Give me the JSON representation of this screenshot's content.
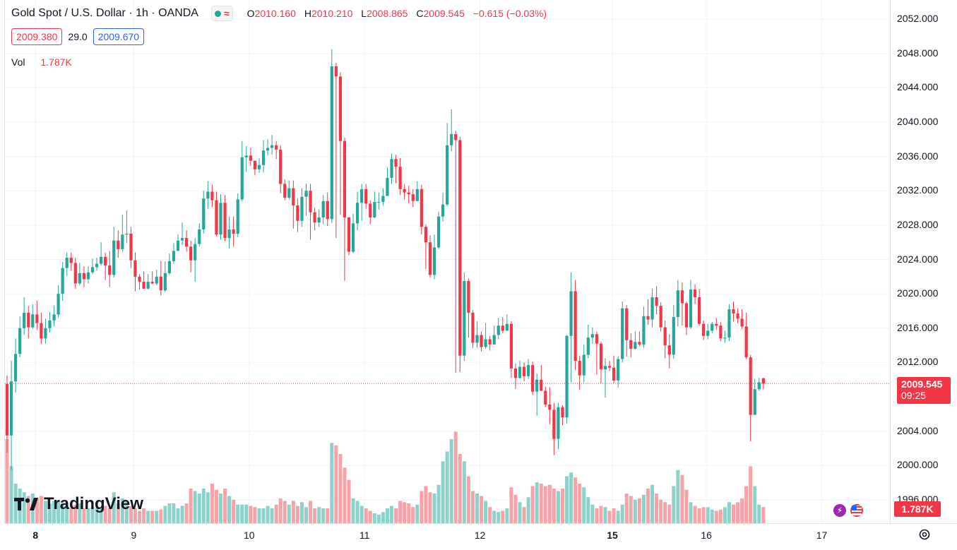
{
  "header": {
    "symbol_title": "Gold Spot / U.S. Dollar · 1h · OANDA",
    "ohlc": {
      "o_label": "O",
      "o_value": "2010.160",
      "h_label": "H",
      "h_value": "2010.210",
      "l_label": "L",
      "l_value": "2008.865",
      "c_label": "C",
      "c_value": "2009.545",
      "change": "−0.615 (−0.03%)"
    },
    "bid": "2009.380",
    "spread": "29.0",
    "ask": "2009.670",
    "vol_label": "Vol",
    "vol_value": "1.787K"
  },
  "price_scale": {
    "labels": [
      "2052.000",
      "2048.000",
      "2044.000",
      "2040.000",
      "2036.000",
      "2032.000",
      "2028.000",
      "2024.000",
      "2020.000",
      "2016.000",
      "2012.000",
      "2004.000",
      "2000.000",
      "1996.000"
    ],
    "last_price": "2009.545",
    "countdown": "09:25",
    "volume_tag": "1.787K"
  },
  "time_scale": {
    "labels": [
      {
        "text": "8",
        "bold": true
      },
      {
        "text": "9",
        "bold": false
      },
      {
        "text": "10",
        "bold": false
      },
      {
        "text": "11",
        "bold": false
      },
      {
        "text": "12",
        "bold": false
      },
      {
        "text": "15",
        "bold": true
      },
      {
        "text": "16",
        "bold": false
      },
      {
        "text": "17",
        "bold": false
      }
    ]
  },
  "branding": {
    "logo_text": "TradingView"
  },
  "colors": {
    "up": "#26a69a",
    "down": "#f23645",
    "vol_up": "#8ed1ca",
    "vol_down": "#f5a3a8",
    "grid": "#f0f3fa",
    "accent_blue": "#2962ff"
  },
  "icons": {
    "market_status": "green-dot-icon",
    "indicator": "wave-icon",
    "settings": "gear-icon",
    "event_1": "lightning-icon",
    "event_2": "us-flag-icon"
  },
  "chart_data": {
    "type": "candlestick",
    "timeframe": "1h",
    "ylim": [
      1995,
      2053
    ],
    "current_price": 2009.545,
    "day_ticks": [
      {
        "day": "8",
        "bar": 6
      },
      {
        "day": "9",
        "bar": 29
      },
      {
        "day": "10",
        "bar": 56
      },
      {
        "day": "11",
        "bar": 83
      },
      {
        "day": "12",
        "bar": 110
      },
      {
        "day": "15",
        "bar": 141
      },
      {
        "day": "16",
        "bar": 163
      },
      {
        "day": "17",
        "bar": 190
      }
    ],
    "candles": [
      [
        2009.5,
        2003.5,
        2010.5,
        2001.5,
        0.68
      ],
      [
        2003.5,
        2009.8,
        2012.2,
        1999.5,
        0.46
      ],
      [
        2009.8,
        2013,
        2014.8,
        2008.5,
        0.32
      ],
      [
        2013,
        2016,
        2017.4,
        2012.6,
        0.28
      ],
      [
        2016,
        2017.8,
        2019.6,
        2015.2,
        0.25
      ],
      [
        2017.8,
        2016.1,
        2018.6,
        2014.8,
        0.22
      ],
      [
        2016.1,
        2017.6,
        2018.8,
        2015.9,
        0.24
      ],
      [
        2017.6,
        2016.6,
        2019.2,
        2015.8,
        0.2
      ],
      [
        2016.6,
        2014.8,
        2017.8,
        2014.2,
        0.22
      ],
      [
        2014.8,
        2016,
        2017.1,
        2014.2,
        0.18
      ],
      [
        2016,
        2016.9,
        2017.9,
        2015.5,
        0.16
      ],
      [
        2016.9,
        2017.6,
        2018.6,
        2016.2,
        0.18
      ],
      [
        2017.6,
        2020,
        2021,
        2017.2,
        0.18
      ],
      [
        2020,
        2023,
        2023.7,
        2019.2,
        0.16
      ],
      [
        2023,
        2024.2,
        2024.8,
        2022.1,
        0.14
      ],
      [
        2024.2,
        2023.6,
        2024.8,
        2022.7,
        0.12
      ],
      [
        2023.6,
        2021.2,
        2024.2,
        2020.6,
        0.15
      ],
      [
        2021.2,
        2022.4,
        2023.6,
        2021,
        0.16
      ],
      [
        2022.4,
        2021.7,
        2023.2,
        2020.8,
        0.12
      ],
      [
        2021.7,
        2022.5,
        2023.2,
        2021.2,
        0.12
      ],
      [
        2022.5,
        2023.1,
        2024.1,
        2022.3,
        0.13
      ],
      [
        2023.1,
        2023.5,
        2024.2,
        2022.7,
        0.12
      ],
      [
        2023.5,
        2024.3,
        2026,
        2023.3,
        0.13
      ],
      [
        2024.3,
        2023.3,
        2024.8,
        2021.6,
        0.14
      ],
      [
        2023.3,
        2022.2,
        2025,
        2020.8,
        0.12
      ],
      [
        2022.2,
        2026.2,
        2027.8,
        2021.9,
        0.25
      ],
      [
        2026.2,
        2025.2,
        2027.4,
        2024.2,
        0.16
      ],
      [
        2025.2,
        2026.9,
        2029.2,
        2024.9,
        0.2
      ],
      [
        2026.9,
        2027,
        2029.7,
        2025.9,
        0.18
      ],
      [
        2027,
        2023.9,
        2027.8,
        2023,
        0.14
      ],
      [
        2023.9,
        2022,
        2024.8,
        2020.3,
        0.12
      ],
      [
        2022,
        2021.4,
        2022.3,
        2020.5,
        0.1
      ],
      [
        2021.4,
        2020.6,
        2022.6,
        2020.6,
        0.12
      ],
      [
        2020.6,
        2021.4,
        2022.3,
        2020.5,
        0.1
      ],
      [
        2021.4,
        2021.2,
        2022.6,
        2021.1,
        0.1
      ],
      [
        2021.2,
        2022,
        2022.8,
        2021,
        0.1
      ],
      [
        2022,
        2020.4,
        2023.8,
        2019.8,
        0.11
      ],
      [
        2020.4,
        2022.4,
        2023.8,
        2020.2,
        0.14
      ],
      [
        2022.4,
        2023.8,
        2024.7,
        2022.2,
        0.16
      ],
      [
        2023.8,
        2025,
        2025.9,
        2023.5,
        0.16
      ],
      [
        2025,
        2026.2,
        2026.9,
        2025.2,
        0.12
      ],
      [
        2026.2,
        2026.5,
        2028.3,
        2025.7,
        0.14
      ],
      [
        2026.5,
        2025.5,
        2027.4,
        2024.9,
        0.16
      ],
      [
        2025.5,
        2023.9,
        2026.2,
        2022.5,
        0.28
      ],
      [
        2023.9,
        2025.8,
        2026.5,
        2021.4,
        0.26
      ],
      [
        2025.8,
        2027.5,
        2028.2,
        2025.5,
        0.24
      ],
      [
        2027.5,
        2031.1,
        2032,
        2027,
        0.28
      ],
      [
        2031.1,
        2031.9,
        2033.1,
        2029.9,
        0.25
      ],
      [
        2031.9,
        2030.9,
        2032.7,
        2030.1,
        0.32
      ],
      [
        2030.9,
        2026.9,
        2031.9,
        2026.7,
        0.27
      ],
      [
        2026.9,
        2030.6,
        2031.6,
        2026.3,
        0.24
      ],
      [
        2030.6,
        2026.5,
        2031.5,
        2026.1,
        0.28
      ],
      [
        2026.5,
        2027.5,
        2029,
        2025.3,
        0.22
      ],
      [
        2027.5,
        2027,
        2029,
        2025.5,
        0.19
      ],
      [
        2027,
        2031,
        2031.7,
        2026.6,
        0.15
      ],
      [
        2031,
        2035.9,
        2037.8,
        2030.8,
        0.15
      ],
      [
        2035.9,
        2036.1,
        2037.2,
        2034.2,
        0.15
      ],
      [
        2036.1,
        2035.5,
        2037,
        2034.9,
        0.14
      ],
      [
        2035.5,
        2034.5,
        2035.5,
        2033.8,
        0.13
      ],
      [
        2034.5,
        2035,
        2035.8,
        2034.1,
        0.12
      ],
      [
        2035,
        2036.7,
        2037.9,
        2034.1,
        0.12
      ],
      [
        2036.7,
        2037,
        2038,
        2036.1,
        0.14
      ],
      [
        2037,
        2037.3,
        2038.5,
        2036.2,
        0.12
      ],
      [
        2037.3,
        2036.8,
        2037.8,
        2035.7,
        0.15
      ],
      [
        2036.8,
        2032.8,
        2037.3,
        2031.7,
        0.2
      ],
      [
        2032.8,
        2031.2,
        2033.3,
        2030.9,
        0.18
      ],
      [
        2031.2,
        2032.3,
        2033.2,
        2031,
        0.15
      ],
      [
        2032.3,
        2030.3,
        2033.2,
        2027.6,
        0.18
      ],
      [
        2030.3,
        2028.5,
        2031.1,
        2027.2,
        0.14
      ],
      [
        2028.5,
        2031.3,
        2032.3,
        2027.8,
        0.17
      ],
      [
        2031.3,
        2032,
        2032.8,
        2029.1,
        0.13
      ],
      [
        2032,
        2029.5,
        2032.8,
        2026.3,
        0.18
      ],
      [
        2029.5,
        2028.3,
        2030,
        2027.4,
        0.12
      ],
      [
        2028.3,
        2028.9,
        2029.8,
        2027.8,
        0.13
      ],
      [
        2028.9,
        2030.8,
        2031.5,
        2028.1,
        0.12
      ],
      [
        2030.8,
        2028.7,
        2031.8,
        2027.9,
        0.12
      ],
      [
        2028.7,
        2046.5,
        2048.5,
        2028.2,
        0.65
      ],
      [
        2046.5,
        2045.3,
        2046.9,
        2026.5,
        0.63
      ],
      [
        2045.3,
        2037.8,
        2045.8,
        2029.2,
        0.56
      ],
      [
        2037.8,
        2028.9,
        2038.2,
        2021.5,
        0.45
      ],
      [
        2028.9,
        2024.9,
        2028.9,
        2024.5,
        0.35
      ],
      [
        2024.9,
        2028.2,
        2029.3,
        2024.7,
        0.2
      ],
      [
        2028.2,
        2030.6,
        2031.9,
        2027.4,
        0.18
      ],
      [
        2030.6,
        2032.2,
        2032.8,
        2028.5,
        0.14
      ],
      [
        2032.2,
        2030.5,
        2032.8,
        2029.9,
        0.12
      ],
      [
        2030.5,
        2028.9,
        2030.9,
        2028.1,
        0.1
      ],
      [
        2028.9,
        2030.7,
        2031.9,
        2028.8,
        0.08
      ],
      [
        2030.7,
        2030.7,
        2031.8,
        2029.8,
        0.07
      ],
      [
        2030.7,
        2031.4,
        2032.3,
        2030.3,
        0.09
      ],
      [
        2031.4,
        2033.5,
        2034.7,
        2031.4,
        0.12
      ],
      [
        2033.5,
        2035.7,
        2036.3,
        2032.8,
        0.14
      ],
      [
        2035.7,
        2034.8,
        2036.2,
        2032.9,
        0.12
      ],
      [
        2034.8,
        2032.2,
        2035.8,
        2031.5,
        0.18
      ],
      [
        2032.2,
        2031.8,
        2032.8,
        2031,
        0.17
      ],
      [
        2031.8,
        2031.6,
        2032.6,
        2030.5,
        0.16
      ],
      [
        2031.6,
        2030.8,
        2032.2,
        2030.1,
        0.13
      ],
      [
        2030.8,
        2032.2,
        2033.1,
        2030.9,
        0.15
      ],
      [
        2032.2,
        2027.8,
        2032.7,
        2026.9,
        0.26
      ],
      [
        2027.8,
        2026,
        2028.1,
        2022.9,
        0.3
      ],
      [
        2026,
        2022.2,
        2026.8,
        2021.9,
        0.25
      ],
      [
        2022.2,
        2025.4,
        2026.9,
        2021.7,
        0.24
      ],
      [
        2025.4,
        2029,
        2029.6,
        2025.2,
        0.31
      ],
      [
        2029,
        2030.4,
        2031.8,
        2028.4,
        0.5
      ],
      [
        2030.4,
        2037.3,
        2039.9,
        2030.2,
        0.58
      ],
      [
        2037.3,
        2038.6,
        2041.5,
        2036.6,
        0.68
      ],
      [
        2038.6,
        2037.9,
        2039,
        2010.8,
        0.74
      ],
      [
        2037.9,
        2012.8,
        2038.3,
        2010.9,
        0.56
      ],
      [
        2012.8,
        2021.5,
        2022.5,
        2012.2,
        0.5
      ],
      [
        2021.5,
        2017.8,
        2021.8,
        2014.9,
        0.38
      ],
      [
        2017.8,
        2014.3,
        2018.1,
        2013.7,
        0.26
      ],
      [
        2014.3,
        2015.2,
        2016.8,
        2013.7,
        0.24
      ],
      [
        2015.2,
        2013.8,
        2015.6,
        2013.3,
        0.22
      ],
      [
        2013.8,
        2014.7,
        2016.6,
        2013.6,
        0.18
      ],
      [
        2014.7,
        2014.1,
        2015.1,
        2013.4,
        0.13
      ],
      [
        2014.1,
        2015.2,
        2016.3,
        2014.1,
        0.1
      ],
      [
        2015.2,
        2016.3,
        2017.2,
        2014.7,
        0.09
      ],
      [
        2016.3,
        2015.7,
        2017.3,
        2015.4,
        0.1
      ],
      [
        2015.7,
        2016.5,
        2017.6,
        2015.7,
        0.12
      ],
      [
        2016.5,
        2011.3,
        2016.8,
        2010.2,
        0.29
      ],
      [
        2011.3,
        2010.2,
        2011.9,
        2008.9,
        0.23
      ],
      [
        2010.2,
        2011.5,
        2012.2,
        2010.1,
        0.17
      ],
      [
        2011.5,
        2010.4,
        2012,
        2009.8,
        0.13
      ],
      [
        2010.4,
        2011.7,
        2012.4,
        2010.1,
        0.21
      ],
      [
        2011.7,
        2008.6,
        2012.1,
        2008.2,
        0.3
      ],
      [
        2008.6,
        2010,
        2010.7,
        2005.8,
        0.33
      ],
      [
        2010,
        2008.7,
        2011.7,
        2008.7,
        0.32
      ],
      [
        2008.7,
        2007.1,
        2009.2,
        2006.8,
        0.3
      ],
      [
        2007.1,
        2006.5,
        2009.1,
        2004.8,
        0.31
      ],
      [
        2006.5,
        2003.1,
        2007.3,
        2001.2,
        0.28
      ],
      [
        2003.1,
        2006.8,
        2007.3,
        2001.9,
        0.26
      ],
      [
        2006.8,
        2005.6,
        2007,
        2004.7,
        0.28
      ],
      [
        2005.6,
        2015.1,
        2015.2,
        2004.9,
        0.38
      ],
      [
        2015.1,
        2020.3,
        2022.5,
        2009.7,
        0.41
      ],
      [
        2020.3,
        2012.2,
        2021.6,
        2011.1,
        0.37
      ],
      [
        2012.2,
        2010.5,
        2012.8,
        2008.8,
        0.32
      ],
      [
        2010.5,
        2012.9,
        2014.1,
        2009.7,
        0.29
      ],
      [
        2012.9,
        2014.9,
        2016.4,
        2012.5,
        0.21
      ],
      [
        2014.9,
        2015.3,
        2016.1,
        2014.2,
        0.15
      ],
      [
        2015.3,
        2014.2,
        2015.6,
        2010.6,
        0.12
      ],
      [
        2014.2,
        2011.2,
        2014.4,
        2009.6,
        0.14
      ],
      [
        2011.2,
        2011.6,
        2012.5,
        2007.9,
        0.13
      ],
      [
        2011.6,
        2011.4,
        2012.2,
        2011,
        0.1
      ],
      [
        2011.4,
        2009.9,
        2012.8,
        2009.6,
        0.12
      ],
      [
        2009.9,
        2012.4,
        2012.7,
        2009.1,
        0.1
      ],
      [
        2012.4,
        2018.3,
        2019.1,
        2012,
        0.15
      ],
      [
        2018.3,
        2014.6,
        2018.7,
        2012.7,
        0.24
      ],
      [
        2014.6,
        2013.6,
        2015.4,
        2012.6,
        0.22
      ],
      [
        2013.6,
        2014.4,
        2015.6,
        2013.5,
        0.19
      ],
      [
        2014.4,
        2014.1,
        2015.6,
        2013.9,
        0.2
      ],
      [
        2014.1,
        2017.4,
        2018.5,
        2013.7,
        0.23
      ],
      [
        2017.4,
        2017,
        2019.4,
        2016.4,
        0.28
      ],
      [
        2017,
        2019.6,
        2020.6,
        2016.1,
        0.31
      ],
      [
        2019.6,
        2018.6,
        2020.9,
        2017.6,
        0.24
      ],
      [
        2018.6,
        2016.1,
        2019,
        2015.6,
        0.19
      ],
      [
        2016.1,
        2014,
        2016.9,
        2012.5,
        0.17
      ],
      [
        2014,
        2012.9,
        2015.3,
        2011.3,
        0.15
      ],
      [
        2012.9,
        2017.3,
        2018.7,
        2012.4,
        0.3
      ],
      [
        2017.3,
        2020.4,
        2021.6,
        2016.2,
        0.43
      ],
      [
        2020.4,
        2018.9,
        2021.3,
        2016.3,
        0.39
      ],
      [
        2018.9,
        2016.1,
        2019.1,
        2015.2,
        0.27
      ],
      [
        2016.1,
        2020.5,
        2021.6,
        2015.9,
        0.17
      ],
      [
        2020.5,
        2019.6,
        2021.1,
        2018.8,
        0.14
      ],
      [
        2019.6,
        2016.5,
        2020.6,
        2016.3,
        0.12
      ],
      [
        2016.5,
        2015.1,
        2016.9,
        2014.6,
        0.13
      ],
      [
        2015.1,
        2015.7,
        2016.5,
        2014.7,
        0.13
      ],
      [
        2015.7,
        2016.5,
        2016.7,
        2015.4,
        0.11
      ],
      [
        2016.5,
        2016.3,
        2017.2,
        2015.8,
        0.1
      ],
      [
        2016.3,
        2014.8,
        2016.7,
        2014.5,
        0.11
      ],
      [
        2014.8,
        2014.9,
        2015.7,
        2014.3,
        0.13
      ],
      [
        2014.9,
        2018.2,
        2018.8,
        2014.5,
        0.17
      ],
      [
        2018.2,
        2017.7,
        2019.1,
        2016.8,
        0.15
      ],
      [
        2017.7,
        2017.1,
        2018.3,
        2016.6,
        0.17
      ],
      [
        2017.1,
        2016.2,
        2018.2,
        2015.9,
        0.2
      ],
      [
        2016.2,
        2012.6,
        2017.8,
        2012.4,
        0.3
      ],
      [
        2012.6,
        2005.9,
        2012.9,
        2002.8,
        0.46
      ],
      [
        2005.9,
        2008.9,
        2010.1,
        2006.6,
        0.3
      ],
      [
        2008.9,
        2009.7,
        2010.2,
        2008.7,
        0.15
      ],
      [
        2010.16,
        2009.545,
        2010.21,
        2008.865,
        0.13
      ]
    ]
  }
}
